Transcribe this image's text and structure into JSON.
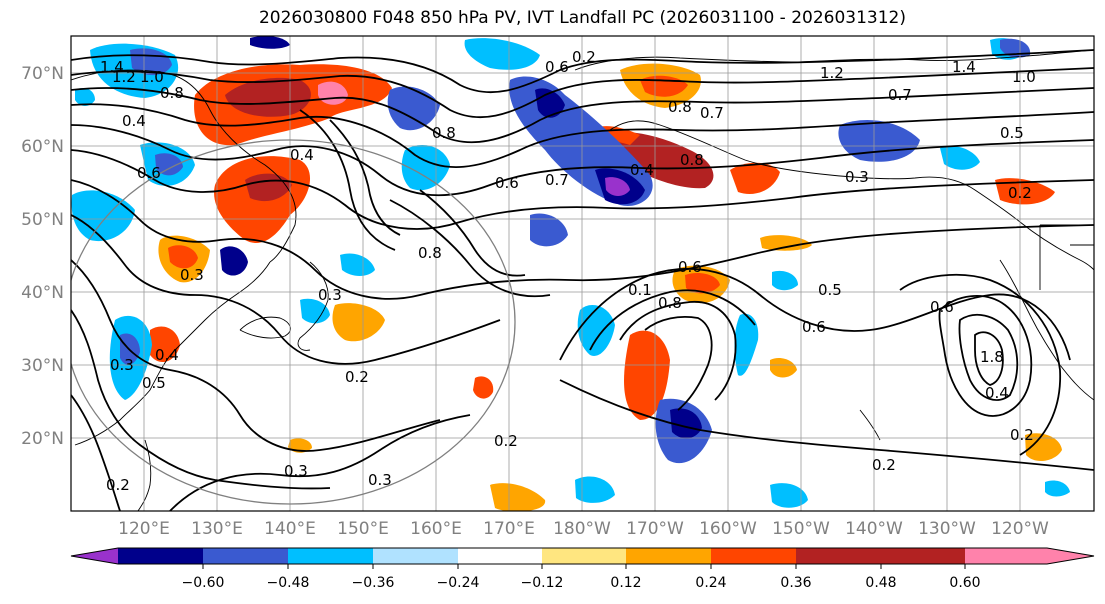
{
  "title": "2026030800 F048 850 hPa PV, IVT Landfall PC (2026031100 - 2026031312)",
  "lat_labels": [
    "70°N",
    "60°N",
    "50°N",
    "40°N",
    "30°N",
    "20°N"
  ],
  "lon_labels": [
    "120°E",
    "130°E",
    "140°E",
    "150°E",
    "160°E",
    "170°E",
    "180°W",
    "170°W",
    "160°W",
    "150°W",
    "140°W",
    "130°W",
    "120°W"
  ],
  "colorbar": {
    "ticks": [
      "−0.60",
      "−0.48",
      "−0.36",
      "−0.24",
      "−0.12",
      "0.12",
      "0.24",
      "0.36",
      "0.48",
      "0.60"
    ],
    "colors": [
      "#9932cc",
      "#00008b",
      "#3a5ad0",
      "#00bfff",
      "#b0e2ff",
      "#ffffff",
      "#ffe680",
      "#ffa500",
      "#ff4500",
      "#b22222",
      "#ff82ab"
    ]
  },
  "contour_labels": [
    {
      "text": "1.4"
    },
    {
      "text": "1.2"
    },
    {
      "text": "1.0"
    },
    {
      "text": "0.8"
    },
    {
      "text": "0.4"
    },
    {
      "text": "0.6"
    },
    {
      "text": "0.3"
    },
    {
      "text": "0.5"
    },
    {
      "text": "0.4"
    },
    {
      "text": "0.3"
    },
    {
      "text": "0.2"
    },
    {
      "text": "0.2"
    },
    {
      "text": "0.3"
    },
    {
      "text": "0.3"
    },
    {
      "text": "0.8"
    },
    {
      "text": "0.6"
    },
    {
      "text": "0.6"
    },
    {
      "text": "0.7"
    },
    {
      "text": "0.4"
    },
    {
      "text": "0.8"
    },
    {
      "text": "0.8"
    },
    {
      "text": "0.1"
    },
    {
      "text": "0.6"
    },
    {
      "text": "0.8"
    },
    {
      "text": "0.5"
    },
    {
      "text": "0.6"
    },
    {
      "text": "0.2"
    },
    {
      "text": "0.3"
    },
    {
      "text": "0.2"
    },
    {
      "text": "0.7"
    },
    {
      "text": "1.2"
    },
    {
      "text": "1.4"
    },
    {
      "text": "1.0"
    },
    {
      "text": "0.5"
    },
    {
      "text": "0.3"
    },
    {
      "text": "0.2"
    },
    {
      "text": "0.6"
    },
    {
      "text": "1.8"
    },
    {
      "text": "0.4"
    },
    {
      "text": "0.2"
    },
    {
      "text": "0.2"
    },
    {
      "text": "0.8"
    },
    {
      "text": "0.7"
    },
    {
      "text": "0.4"
    }
  ]
}
